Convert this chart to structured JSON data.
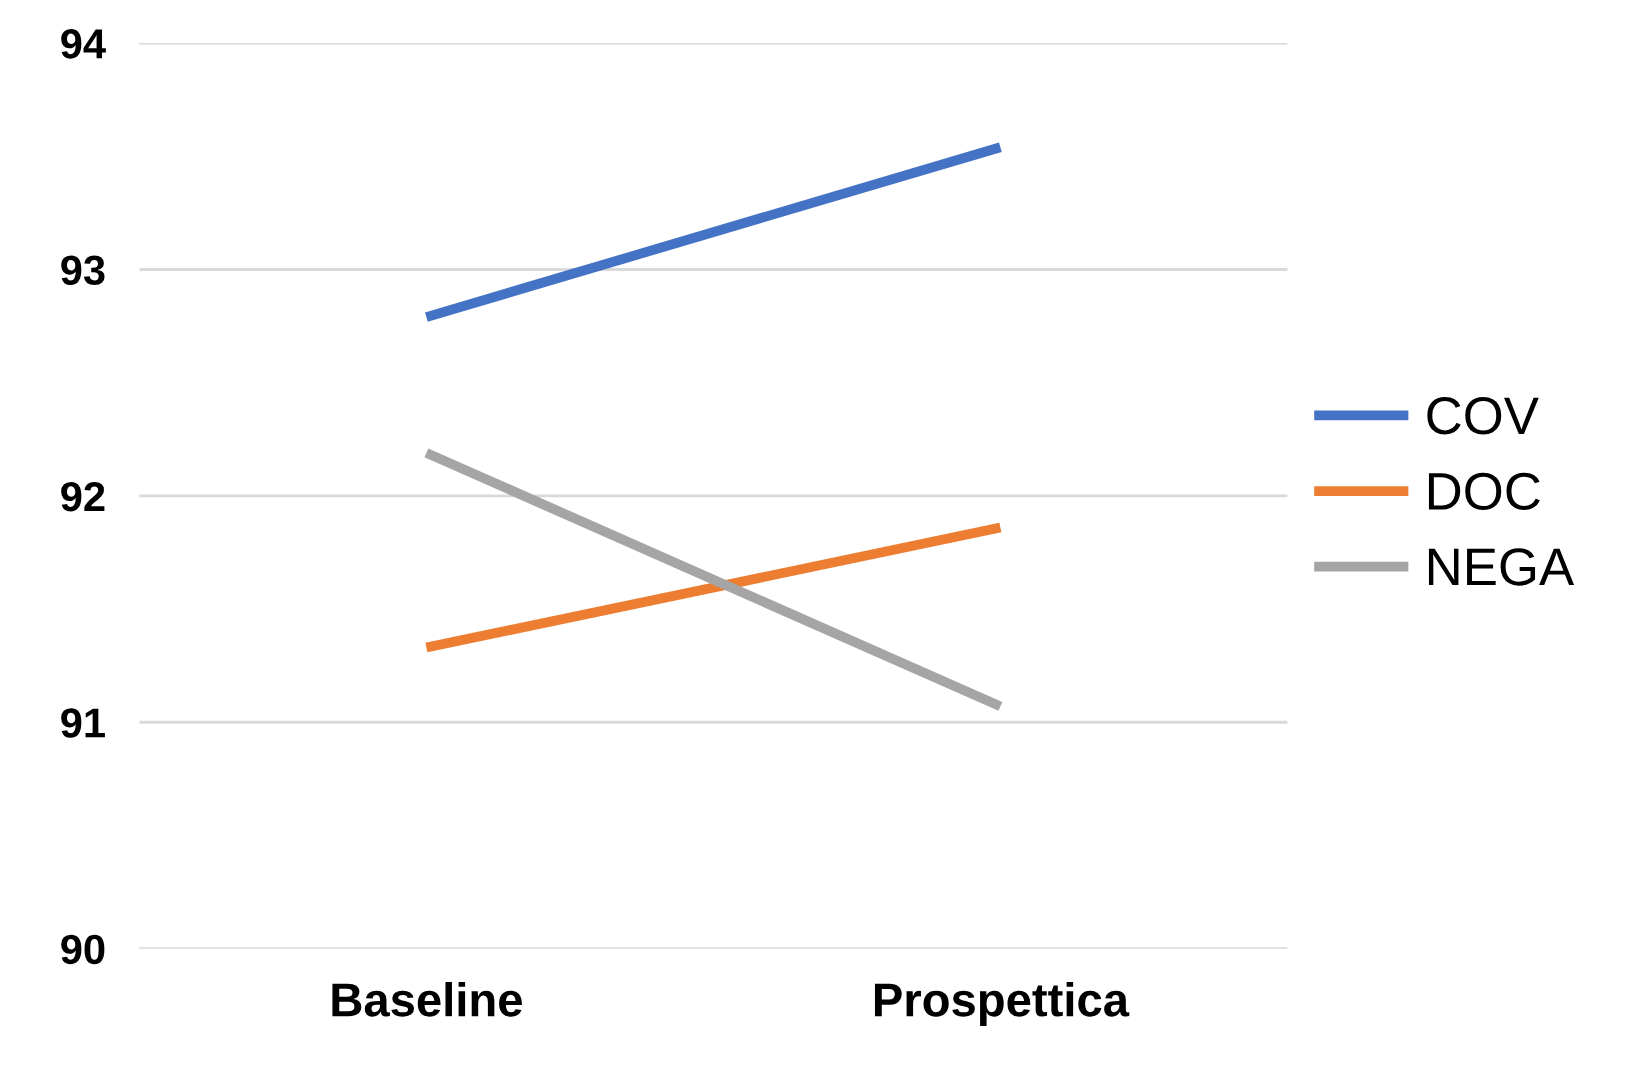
{
  "chart_data": {
    "type": "line",
    "categories": [
      "Baseline",
      "Prospettica"
    ],
    "series": [
      {
        "name": "COV",
        "color": "#4472c4",
        "values": [
          92.79,
          93.54
        ]
      },
      {
        "name": "DOC",
        "color": "#ed7d31",
        "values": [
          91.33,
          91.86
        ]
      },
      {
        "name": "NEGA",
        "color": "#a5a5a5",
        "values": [
          92.19,
          91.07
        ]
      }
    ],
    "ylim": [
      90,
      94
    ],
    "yticks": [
      90,
      91,
      92,
      93,
      94
    ],
    "grid": "y",
    "legend": "right",
    "marker": "none",
    "line_style": "solid"
  }
}
